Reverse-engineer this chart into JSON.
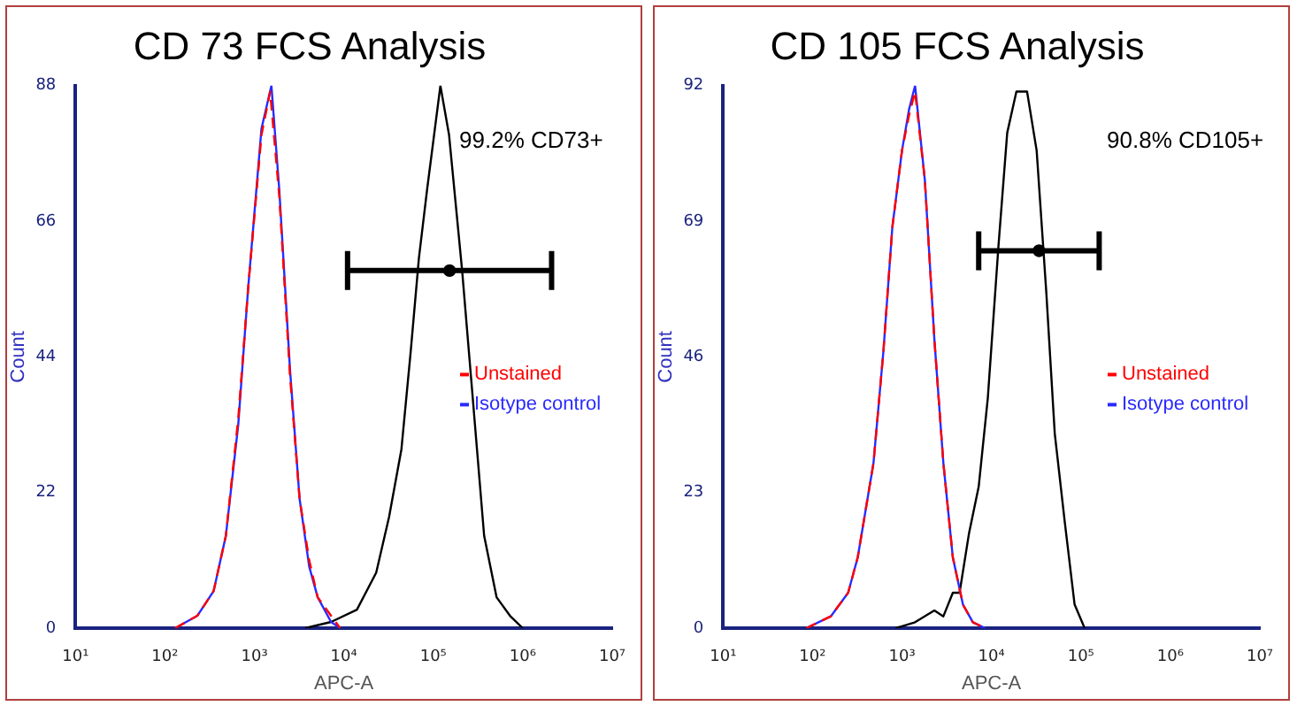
{
  "chart_data": [
    {
      "type": "line",
      "title": "CD 73 FCS Analysis",
      "xlabel": "APC-A",
      "ylabel": "Count",
      "log": "x",
      "xlim": [
        10,
        10000000
      ],
      "ylim": [
        0,
        88
      ],
      "xticks": [
        {
          "value": 10,
          "label": "10¹"
        },
        {
          "value": 100,
          "label": "10²"
        },
        {
          "value": 1000,
          "label": "10³"
        },
        {
          "value": 10000,
          "label": "10⁴"
        },
        {
          "value": 100000,
          "label": "10⁵"
        },
        {
          "value": 1000000,
          "label": "10⁶"
        },
        {
          "value": 10000000,
          "label": "10⁷"
        }
      ],
      "yticks": [
        0,
        22,
        44,
        66,
        88
      ],
      "grid": false,
      "legend": "right",
      "marker": "none",
      "annotations": [
        "99.2% CD73+"
      ],
      "series": [
        {
          "name": "Unstained",
          "color": "#ff0000",
          "line_style": "dashed",
          "x": [
            130,
            230,
            350,
            480,
            660,
            850,
            1200,
            1500,
            1900,
            2500,
            3200,
            4100,
            5100,
            7200,
            9100
          ],
          "values": [
            0,
            2,
            6,
            15,
            34,
            55,
            80,
            87,
            70,
            41,
            21,
            11,
            5,
            2,
            0
          ]
        },
        {
          "name": "Isotype control",
          "color": "#2a2aff",
          "line_style": "solid",
          "x": [
            130,
            230,
            350,
            480,
            660,
            850,
            1200,
            1550,
            1900,
            2500,
            3200,
            4100,
            5100,
            7200,
            9100
          ],
          "values": [
            0,
            2,
            6,
            15,
            33,
            55,
            81,
            88,
            71,
            42,
            21,
            10,
            5,
            1,
            0
          ]
        },
        {
          "color": "#000000",
          "line_style": "solid",
          "x": [
            3700,
            7200,
            14000,
            23000,
            32000,
            44000,
            56000,
            69000,
            85000,
            120000,
            150000,
            210000,
            270000,
            370000,
            510000,
            720000,
            1000000
          ],
          "values": [
            0,
            1,
            3,
            9,
            18,
            29,
            45,
            60,
            71,
            88,
            80,
            58,
            39,
            15,
            5,
            2,
            0
          ]
        },
        {
          "type": "scatter",
          "marker": "circle",
          "color": "#000000",
          "x": [
            152000
          ],
          "values": [
            58
          ],
          "xerrors": [
            [
              11000,
              2100000
            ]
          ]
        }
      ]
    },
    {
      "type": "line",
      "title": "CD 105 FCS Analysis",
      "xlabel": "APC-A",
      "ylabel": "Count",
      "log": "x",
      "xlim": [
        10,
        10000000
      ],
      "ylim": [
        0,
        92
      ],
      "xticks": [
        {
          "value": 10,
          "label": "10¹"
        },
        {
          "value": 100,
          "label": "10²"
        },
        {
          "value": 1000,
          "label": "10³"
        },
        {
          "value": 10000,
          "label": "10⁴"
        },
        {
          "value": 100000,
          "label": "10⁵"
        },
        {
          "value": 1000000,
          "label": "10⁶"
        },
        {
          "value": 10000000,
          "label": "10⁷"
        }
      ],
      "yticks": [
        0,
        23,
        46,
        69,
        92
      ],
      "grid": false,
      "legend": "right",
      "marker": "none",
      "annotations": [
        "90.8% CD105+"
      ],
      "series": [
        {
          "name": "Unstained",
          "color": "#ff0000",
          "line_style": "dashed",
          "x": [
            85,
            160,
            250,
            320,
            480,
            620,
            780,
            1000,
            1200,
            1400,
            1800,
            2300,
            2900,
            3700,
            4800,
            6200,
            8500
          ],
          "values": [
            0,
            2,
            6,
            12,
            28,
            47,
            68,
            81,
            87,
            91,
            76,
            49,
            28,
            12,
            4,
            1,
            0
          ]
        },
        {
          "name": "Isotype control",
          "color": "#2a2aff",
          "line_style": "solid",
          "x": [
            85,
            160,
            250,
            320,
            480,
            620,
            780,
            1000,
            1200,
            1400,
            1800,
            2300,
            2900,
            3700,
            4800,
            6200,
            8500
          ],
          "values": [
            0,
            2,
            6,
            12,
            28,
            47,
            68,
            81,
            88,
            92,
            76,
            49,
            28,
            12,
            4,
            1,
            0
          ]
        },
        {
          "color": "#000000",
          "line_style": "solid",
          "x": [
            850,
            1400,
            2300,
            2900,
            3700,
            4400,
            5600,
            7200,
            9100,
            12000,
            15000,
            19000,
            25000,
            32000,
            41000,
            51000,
            66000,
            85000,
            110000
          ],
          "values": [
            0,
            1,
            3,
            2,
            6,
            6,
            16,
            24,
            39,
            65,
            84,
            91,
            91,
            81,
            57,
            33,
            18,
            4,
            0
          ]
        },
        {
          "type": "scatter",
          "marker": "circle",
          "color": "#000000",
          "x": [
            34000
          ],
          "values": [
            64
          ],
          "xerrors": [
            [
              7200,
              160000
            ]
          ]
        }
      ]
    }
  ]
}
